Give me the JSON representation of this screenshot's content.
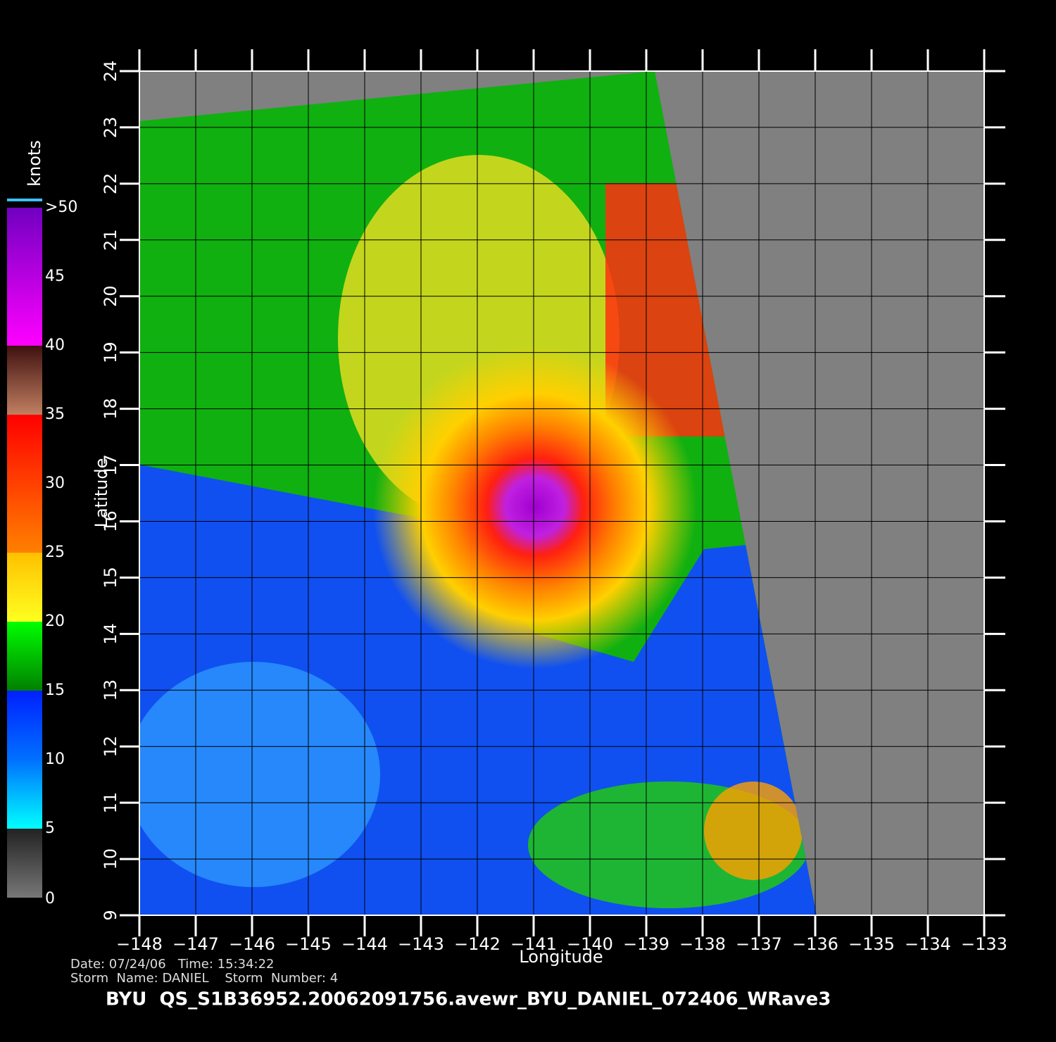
{
  "map": {
    "xlabel": "Longitude",
    "ylabel": "Latitude",
    "xlim": [
      -148,
      -133
    ],
    "ylim": [
      9,
      24
    ],
    "xticks": [
      {
        "value": -148,
        "label": "−148"
      },
      {
        "value": -147,
        "label": "−147"
      },
      {
        "value": -146,
        "label": "−146"
      },
      {
        "value": -145,
        "label": "−145"
      },
      {
        "value": -144,
        "label": "−144"
      },
      {
        "value": -143,
        "label": "−143"
      },
      {
        "value": -142,
        "label": "−142"
      },
      {
        "value": -141,
        "label": "−141"
      },
      {
        "value": -140,
        "label": "−140"
      },
      {
        "value": -139,
        "label": "−139"
      },
      {
        "value": -138,
        "label": "−138"
      },
      {
        "value": -137,
        "label": "−137"
      },
      {
        "value": -136,
        "label": "−136"
      },
      {
        "value": -135,
        "label": "−135"
      },
      {
        "value": -134,
        "label": "−134"
      },
      {
        "value": -133,
        "label": "−133"
      }
    ],
    "yticks": [
      9,
      10,
      11,
      12,
      13,
      14,
      15,
      16,
      17,
      18,
      19,
      20,
      21,
      22,
      23,
      24
    ],
    "grid": true,
    "colorbar": {
      "title": "knots",
      "lim": [
        0,
        50
      ],
      "ticks": [
        0,
        5,
        10,
        15,
        20,
        25,
        30,
        35,
        40,
        45,
        {
          "value": 50,
          "label": ">50"
        }
      ]
    },
    "info": {
      "line1": "Date: 07/24/06   Time: 15:34:22",
      "line2": "Storm  Name: DANIEL    Storm  Number: 4",
      "title": "BYU  QS_S1B36952.20062091756.avewr_BYU_DANIEL_072406_WRave3"
    }
  }
}
